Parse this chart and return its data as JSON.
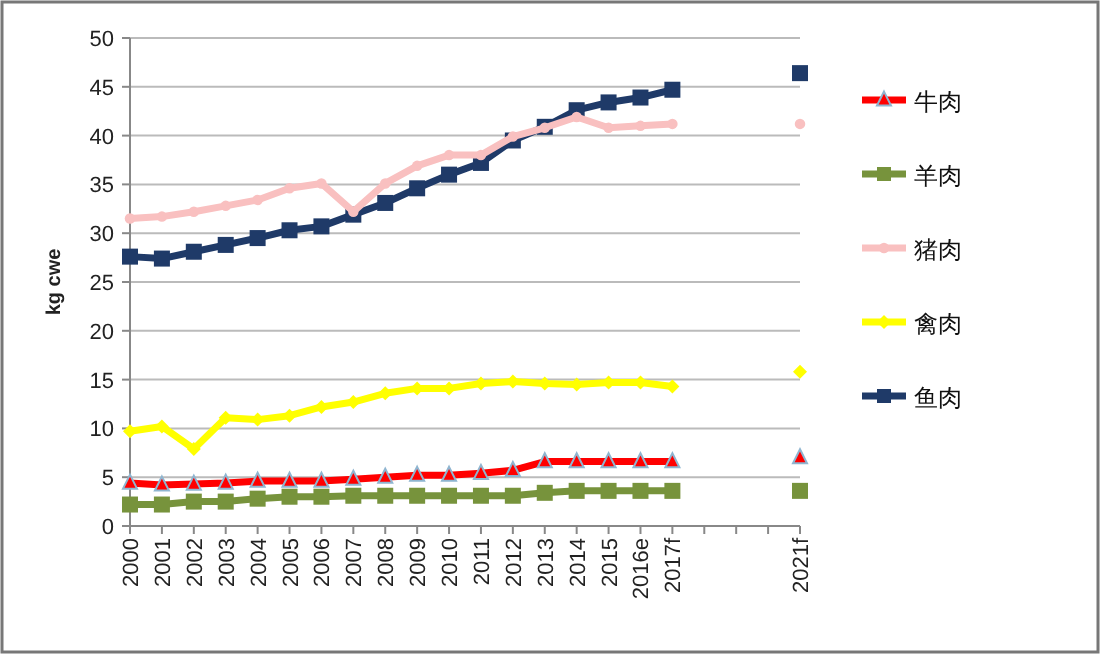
{
  "chart_data": {
    "type": "line",
    "ylabel": "kg cwe",
    "categories": [
      "2000",
      "2001",
      "2002",
      "2003",
      "2004",
      "2005",
      "2006",
      "2007",
      "2008",
      "2009",
      "2010",
      "2011",
      "2012",
      "2013",
      "2014",
      "2015",
      "2016e",
      "2017f",
      null,
      null,
      null,
      "2021f"
    ],
    "series": [
      {
        "name": "牛肉",
        "color": "#ff0000",
        "marker": "triangle",
        "values": [
          4.4,
          4.2,
          4.3,
          4.4,
          4.6,
          4.6,
          4.6,
          4.8,
          5.0,
          5.2,
          5.2,
          5.4,
          5.7,
          6.6,
          6.6,
          6.6,
          6.6,
          6.6,
          null,
          null,
          null,
          7.0
        ]
      },
      {
        "name": "羊肉",
        "color": "#77933c",
        "marker": "square",
        "values": [
          2.2,
          2.2,
          2.5,
          2.5,
          2.8,
          3.0,
          3.0,
          3.1,
          3.1,
          3.1,
          3.1,
          3.1,
          3.1,
          3.4,
          3.6,
          3.6,
          3.6,
          3.6,
          null,
          null,
          null,
          3.6
        ]
      },
      {
        "name": "猪肉",
        "color": "#f9c0c0",
        "marker": "circle",
        "values": [
          31.5,
          31.7,
          32.2,
          32.8,
          33.4,
          34.6,
          35.1,
          32.2,
          35.1,
          36.9,
          38.0,
          38.0,
          39.9,
          40.8,
          41.9,
          40.8,
          41.0,
          41.2,
          null,
          null,
          null,
          41.2
        ]
      },
      {
        "name": "禽肉",
        "color": "#ffff00",
        "marker": "diamond",
        "values": [
          9.7,
          10.2,
          7.9,
          11.1,
          10.9,
          11.3,
          12.2,
          12.7,
          13.6,
          14.1,
          14.1,
          14.6,
          14.8,
          14.6,
          14.5,
          14.7,
          14.7,
          14.3,
          null,
          null,
          null,
          15.8
        ]
      },
      {
        "name": "鱼肉",
        "color": "#1f3a68",
        "marker": "square",
        "values": [
          27.6,
          27.4,
          28.1,
          28.8,
          29.5,
          30.3,
          30.7,
          31.9,
          33.1,
          34.6,
          36.0,
          37.2,
          39.5,
          40.9,
          42.6,
          43.4,
          43.9,
          44.7,
          null,
          null,
          null,
          46.4
        ]
      }
    ],
    "ylim": [
      0,
      50
    ],
    "yticks": [
      0,
      5,
      10,
      15,
      20,
      25,
      30,
      35,
      40,
      45,
      50
    ],
    "grid": "y",
    "legend": "right"
  }
}
